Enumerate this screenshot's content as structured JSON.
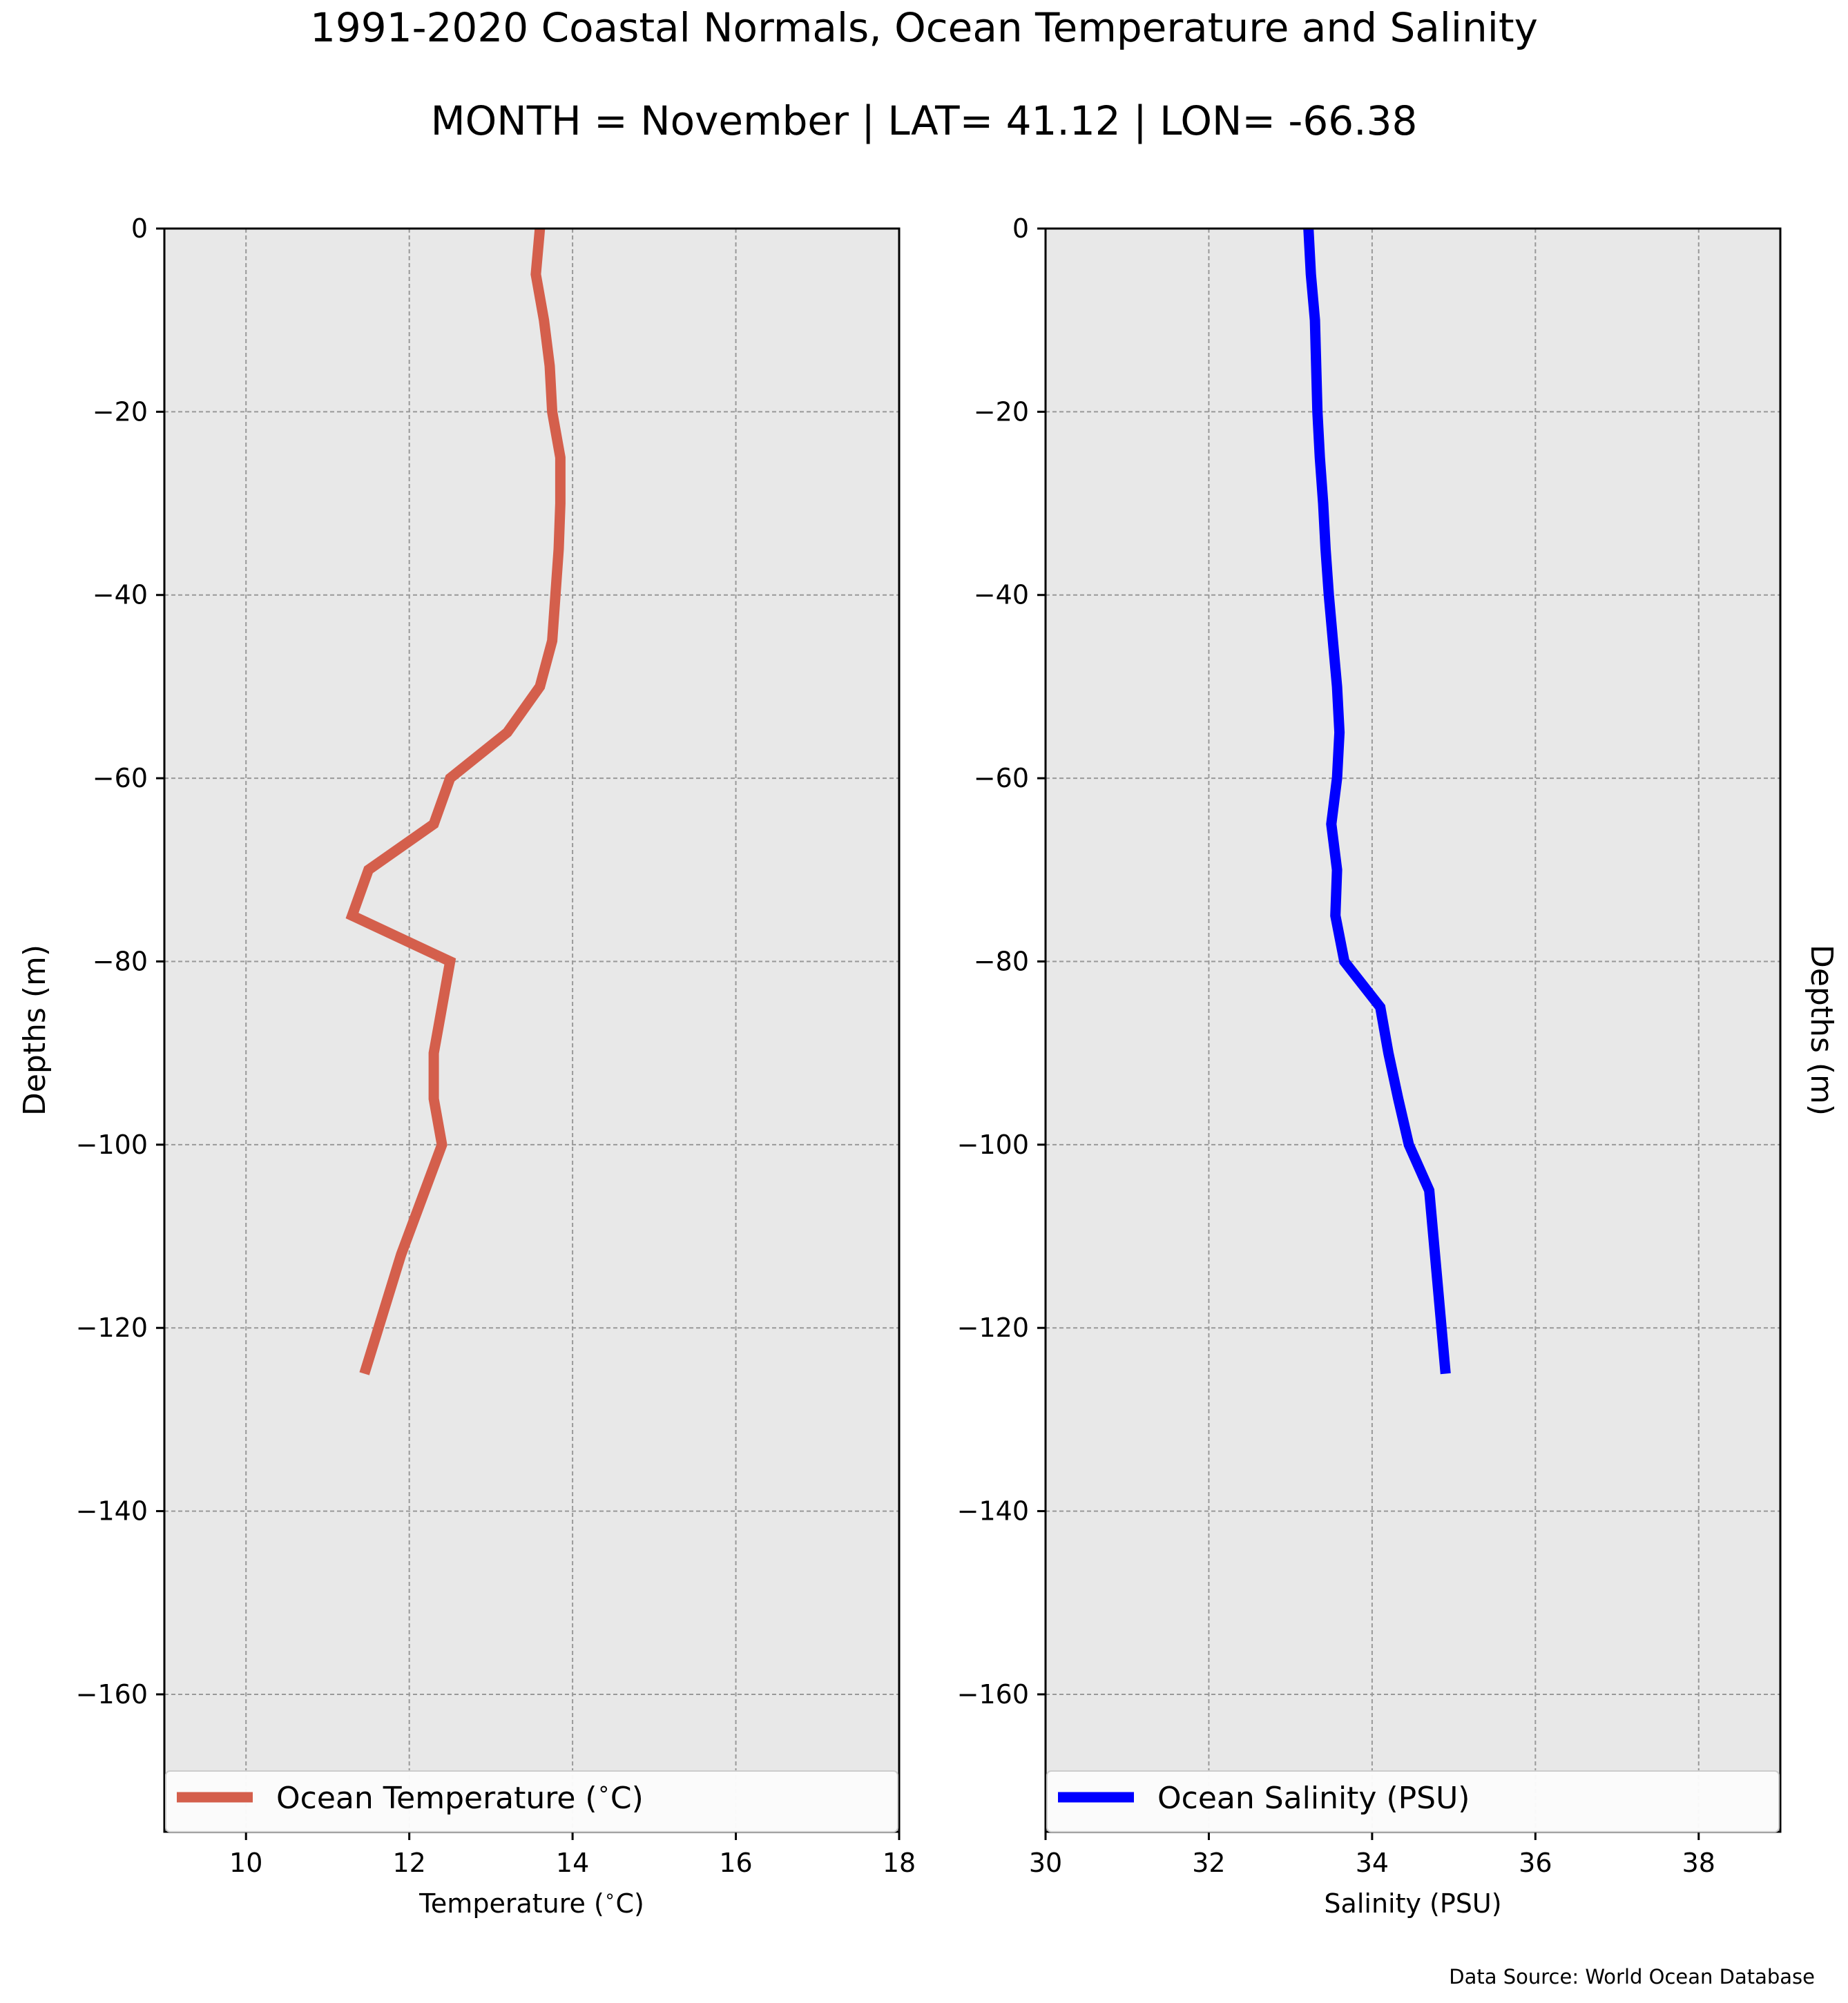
{
  "figure": {
    "title": "1991-2020 Coastal Normals, Ocean Temperature and Salinity",
    "subtitle": "MONTH = November | LAT= 41.12 | LON= -66.38",
    "source_note": "Data Source: World Ocean Database"
  },
  "colors": {
    "background": "#ffffff",
    "plot_background": "#e8e8e8",
    "grid": "#999999",
    "temperature_line": "#d45f4c",
    "salinity_line": "#0000ff"
  },
  "chart_data": [
    {
      "type": "line",
      "series": [
        {
          "name": "Ocean Temperature ($^\\circ$C)",
          "color": "#d45f4c",
          "x": [
            13.6,
            13.55,
            13.65,
            13.72,
            13.75,
            13.85,
            13.85,
            13.83,
            13.79,
            13.75,
            13.6,
            13.2,
            12.5,
            12.3,
            11.5,
            11.3,
            12.5,
            12.4,
            12.3,
            12.3,
            12.4,
            11.9,
            11.45
          ],
          "y": [
            0,
            -5,
            -10,
            -15,
            -20,
            -25,
            -30,
            -35,
            -40,
            -45,
            -50,
            -55,
            -60,
            -65,
            -70,
            -75,
            -80,
            -85,
            -90,
            -95,
            -100,
            -112,
            -125
          ]
        }
      ],
      "xlabel": "Temperature ($^\\circ$C)",
      "ylabel": "Depths (m)",
      "xlim": [
        9,
        18
      ],
      "ylim": [
        -175,
        0
      ],
      "x_ticks": [
        10,
        12,
        14,
        16,
        18
      ],
      "y_ticks": [
        0,
        -20,
        -40,
        -60,
        -80,
        -100,
        -120,
        -140,
        -160
      ],
      "grid": true,
      "legend": "bottom"
    },
    {
      "type": "line",
      "series": [
        {
          "name": "Ocean Salinity (PSU)",
          "color": "#0000ff",
          "x": [
            33.22,
            33.25,
            33.3,
            33.33,
            33.36,
            33.4,
            33.43,
            33.47,
            33.52,
            33.57,
            33.6,
            33.57,
            33.5,
            33.57,
            33.55,
            33.66,
            34.1,
            34.2,
            34.32,
            34.45,
            34.7,
            34.8,
            34.9
          ],
          "y": [
            0,
            -5,
            -10,
            -20,
            -25,
            -30,
            -35,
            -40,
            -45,
            -50,
            -55,
            -60,
            -65,
            -70,
            -75,
            -80,
            -85,
            -90,
            -95,
            -100,
            -105,
            -115,
            -125
          ]
        }
      ],
      "xlabel": "Salinity (PSU)",
      "ylabel": "Depths (m)",
      "xlim": [
        30,
        39
      ],
      "ylim": [
        -175,
        0
      ],
      "x_ticks": [
        30,
        32,
        34,
        36,
        38
      ],
      "y_ticks": [
        0,
        -20,
        -40,
        -60,
        -80,
        -100,
        -120,
        -140,
        -160
      ],
      "grid": true,
      "legend": "bottom"
    }
  ]
}
